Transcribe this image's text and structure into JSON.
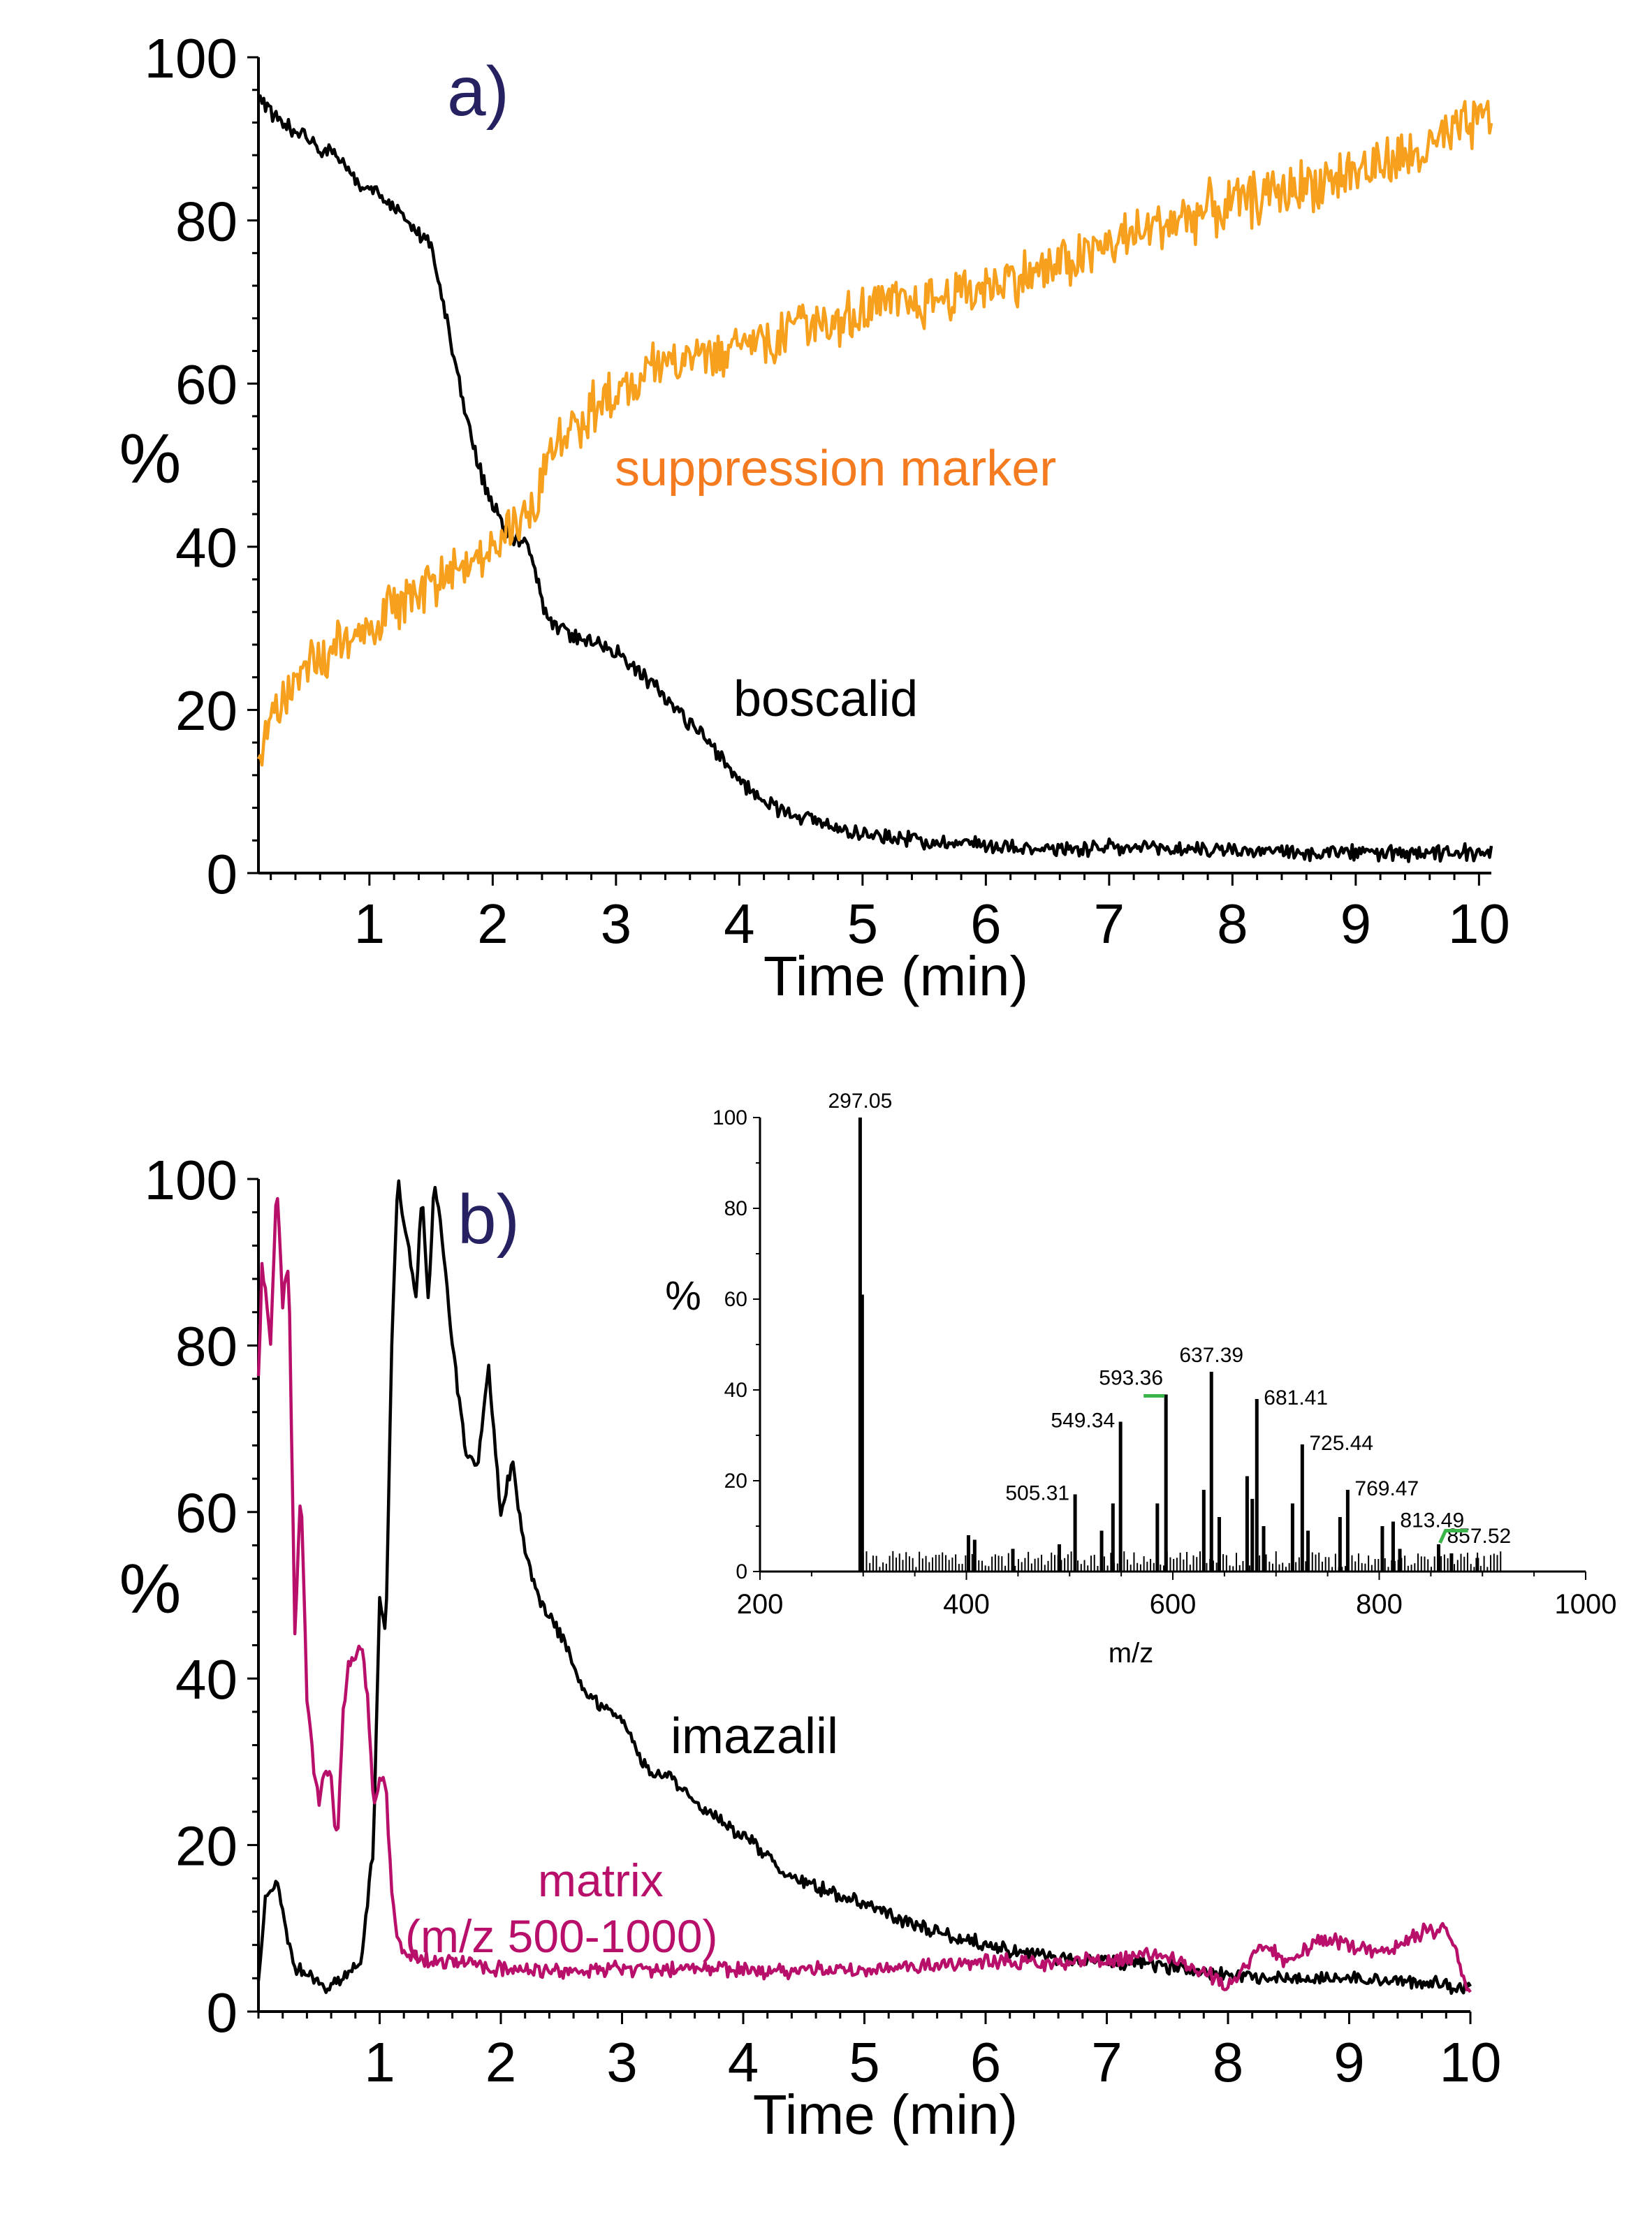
{
  "chart_data": [
    {
      "panel": "a)",
      "type": "line",
      "xlabel": "Time (min)",
      "ylabel": "%",
      "xlim": [
        0.1,
        10.1
      ],
      "ylim": [
        0,
        100
      ],
      "xticks": [
        "1",
        "2",
        "3",
        "4",
        "5",
        "6",
        "7",
        "8",
        "9",
        "10"
      ],
      "yticks": [
        "0",
        "20",
        "40",
        "60",
        "80",
        "100"
      ],
      "series": [
        {
          "name": "boscalid",
          "color": "#000000",
          "x": [
            0.1,
            0.3,
            0.5,
            0.7,
            0.9,
            1.1,
            1.3,
            1.5,
            1.6,
            1.7,
            1.8,
            1.9,
            2.0,
            2.1,
            2.2,
            2.3,
            2.4,
            2.5,
            2.7,
            2.9,
            3.1,
            3.3,
            3.5,
            3.7,
            3.9,
            4.1,
            4.3,
            4.5,
            4.8,
            5.1,
            5.5,
            6.0,
            6.5,
            7.0,
            7.5,
            8.0,
            8.5,
            9.0,
            9.5,
            10.1
          ],
          "y": [
            95,
            92,
            90,
            88,
            85,
            83,
            80,
            77,
            70,
            62,
            55,
            49,
            45,
            42,
            41,
            40,
            33,
            30,
            29,
            28,
            26,
            23,
            20,
            17,
            13,
            10,
            8,
            7,
            5.5,
            4.5,
            4,
            3.5,
            3,
            3,
            3,
            2.8,
            2.5,
            2.5,
            2.3,
            2.5
          ],
          "noise": 1.2
        },
        {
          "name": "suppression marker",
          "color": "#f7a01e",
          "x": [
            0.1,
            0.3,
            0.6,
            1.0,
            1.4,
            1.8,
            2.0,
            2.3,
            2.5,
            2.8,
            3.0,
            3.5,
            4.0,
            4.5,
            5.0,
            5.5,
            6.0,
            6.5,
            7.0,
            7.5,
            8.0,
            8.5,
            9.0,
            9.5,
            10.1
          ],
          "y": [
            14,
            22,
            26,
            30,
            35,
            38,
            41,
            44,
            52,
            57,
            59,
            63,
            65,
            67,
            69,
            70,
            72,
            74,
            77,
            80,
            82,
            84,
            86,
            88,
            93
          ],
          "noise": 4
        }
      ]
    },
    {
      "panel": "b)",
      "type": "line",
      "xlabel": "Time (min)",
      "ylabel": "%",
      "xlim": [
        0,
        10
      ],
      "ylim": [
        0,
        100
      ],
      "xticks": [
        "1",
        "2",
        "3",
        "4",
        "5",
        "6",
        "7",
        "8",
        "9",
        "10"
      ],
      "yticks": [
        "0",
        "20",
        "40",
        "60",
        "80",
        "100"
      ],
      "series": [
        {
          "name": "imazalil",
          "color": "#000000",
          "x": [
            0,
            0.05,
            0.15,
            0.2,
            0.3,
            0.35,
            0.45,
            0.55,
            0.7,
            0.85,
            0.95,
            1.0,
            1.05,
            1.1,
            1.15,
            1.2,
            1.3,
            1.35,
            1.4,
            1.45,
            1.5,
            1.6,
            1.7,
            1.8,
            1.9,
            2.0,
            2.1,
            2.2,
            2.3,
            2.5,
            2.7,
            3.0,
            3.2,
            3.4,
            3.6,
            3.8,
            4.1,
            4.3,
            4.6,
            5.0,
            5.5,
            6.0,
            6.5,
            7.0,
            7.5,
            8.0,
            8.5,
            9.0,
            9.5,
            10.0
          ],
          "y": [
            3,
            13,
            16,
            12,
            5,
            5,
            4,
            3,
            4,
            6,
            20,
            50,
            45,
            80,
            100,
            95,
            86,
            98,
            85,
            100,
            95,
            80,
            68,
            65,
            77,
            60,
            66,
            55,
            50,
            45,
            38,
            35,
            29,
            28,
            25,
            23,
            20,
            17,
            15,
            13,
            10,
            8,
            6.5,
            6,
            5.5,
            4.5,
            4,
            4,
            3.5,
            3
          ],
          "noise": 1
        },
        {
          "name": "matrix",
          "color": "#b8106a",
          "x": [
            0,
            0.03,
            0.1,
            0.15,
            0.2,
            0.25,
            0.3,
            0.35,
            0.4,
            0.45,
            0.5,
            0.55,
            0.6,
            0.65,
            0.7,
            0.75,
            0.8,
            0.85,
            0.9,
            0.95,
            1.0,
            1.05,
            1.1,
            1.15,
            1.2,
            1.4,
            1.7,
            2.0,
            3.0,
            4.0,
            5.0,
            6.0,
            7.0,
            7.5,
            8.0,
            8.3,
            8.5,
            8.8,
            9.0,
            9.3,
            9.5,
            9.8,
            10.0
          ],
          "y": [
            76,
            90,
            80,
            100,
            85,
            90,
            45,
            63,
            38,
            30,
            25,
            29,
            28,
            20,
            36,
            42,
            43,
            44,
            38,
            25,
            28,
            27,
            15,
            8,
            7,
            6,
            6,
            5,
            5,
            5,
            5,
            6,
            6,
            7,
            3,
            8,
            6,
            9,
            8,
            7,
            9,
            10,
            2
          ],
          "noise": 1.2
        }
      ]
    },
    {
      "panel": "inset",
      "type": "bar",
      "xlabel": "m/z",
      "ylabel": "%",
      "xlim": [
        200,
        1000
      ],
      "ylim": [
        0,
        100
      ],
      "xticks": [
        "200",
        "400",
        "600",
        "800",
        "1000"
      ],
      "yticks": [
        "0",
        "20",
        "40",
        "60",
        "80",
        "100"
      ],
      "peaks": [
        {
          "mz": 297.05,
          "value": 100,
          "label": "297.05"
        },
        {
          "mz": 299.05,
          "value": 61
        },
        {
          "mz": 505.31,
          "value": 17,
          "label": "505.31"
        },
        {
          "mz": 549.34,
          "value": 33,
          "label": "549.34"
        },
        {
          "mz": 593.36,
          "value": 39,
          "label": "593.36"
        },
        {
          "mz": 637.39,
          "value": 44,
          "label": "637.39"
        },
        {
          "mz": 681.41,
          "value": 38,
          "label": "681.41"
        },
        {
          "mz": 725.44,
          "value": 28,
          "label": "725.44"
        },
        {
          "mz": 769.47,
          "value": 18,
          "label": "769.47"
        },
        {
          "mz": 813.49,
          "value": 11,
          "label": "813.49"
        },
        {
          "mz": 857.52,
          "value": 6,
          "label": "857.52"
        },
        {
          "mz": 402,
          "value": 8
        },
        {
          "mz": 408,
          "value": 7
        },
        {
          "mz": 445,
          "value": 5
        },
        {
          "mz": 490,
          "value": 6
        },
        {
          "mz": 531,
          "value": 9
        },
        {
          "mz": 542,
          "value": 15
        },
        {
          "mz": 585,
          "value": 15
        },
        {
          "mz": 630,
          "value": 18
        },
        {
          "mz": 645,
          "value": 12
        },
        {
          "mz": 672,
          "value": 21
        },
        {
          "mz": 677,
          "value": 16
        },
        {
          "mz": 688,
          "value": 10
        },
        {
          "mz": 716,
          "value": 15
        },
        {
          "mz": 731,
          "value": 9
        },
        {
          "mz": 762,
          "value": 12
        },
        {
          "mz": 803,
          "value": 10
        },
        {
          "mz": 820,
          "value": 5
        },
        {
          "mz": 870,
          "value": 4
        },
        {
          "mz": 895,
          "value": 3
        }
      ]
    }
  ],
  "annotations": {
    "panel_a_label": "a)",
    "panel_b_label": "b)",
    "suppression_marker": "suppression marker",
    "boscalid": "boscalid",
    "imazalil": "imazalil",
    "matrix": "matrix",
    "matrix_range": "(m/z 500-1000)"
  },
  "colors": {
    "panel_label": "#262262",
    "suppression_marker_text": "#f47b20",
    "matrix_text": "#b8106a",
    "peak_flag": "#39b54a"
  }
}
